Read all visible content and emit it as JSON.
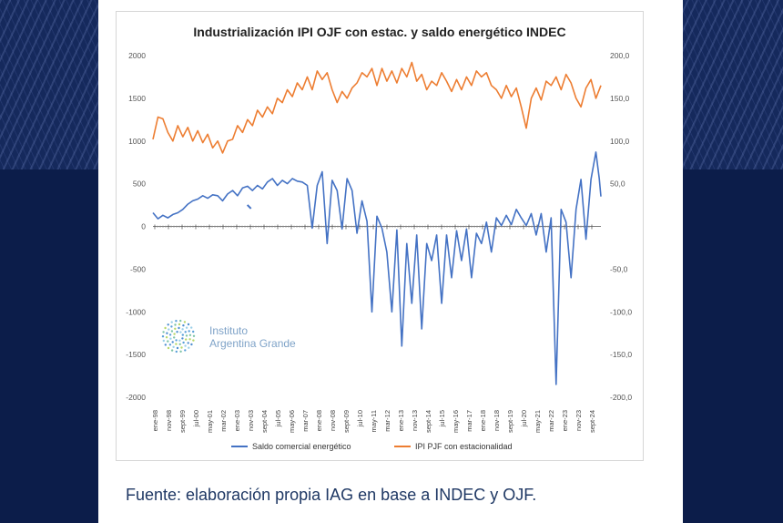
{
  "caption": "Fuente: elaboración propia IAG en base a INDEC y OJF.",
  "logo": {
    "line1": "Instituto",
    "line2": "Argentina Grande"
  },
  "chart_data": {
    "type": "line",
    "title": "Industrialización IPI OJF con estac. y saldo energético INDEC",
    "left_axis": {
      "ylim": [
        -2000,
        2000
      ],
      "ticks": [
        "2000",
        "1500",
        "1000",
        "500",
        "0",
        "-500",
        "-1000",
        "-1500",
        "-2000"
      ]
    },
    "right_axis": {
      "ylim": [
        -200,
        200
      ],
      "ticks": [
        "200,0",
        "150,0",
        "100,0",
        "50,0",
        "",
        "-50,0",
        "-100,0",
        "-150,0",
        "-200,0"
      ]
    },
    "x_range": [
      1998.0,
      2025.0
    ],
    "x_tick_labels": [
      "ene-98",
      "nov-98",
      "sept-99",
      "jul-00",
      "may-01",
      "mar-02",
      "ene-03",
      "nov-03",
      "sept-04",
      "jul-05",
      "may-06",
      "mar-07",
      "ene-08",
      "nov-08",
      "sept-09",
      "jul-10",
      "may-11",
      "mar-12",
      "ene-13",
      "nov-13",
      "sept-14",
      "jul-15",
      "may-16",
      "mar-17",
      "ene-18",
      "nov-18",
      "sept-19",
      "jul-20",
      "may-21",
      "mar-22",
      "ene-23",
      "nov-23",
      "sept-24"
    ],
    "series": [
      {
        "name": "Saldo comercial energético",
        "axis": "left",
        "color": "#4472c4",
        "points": [
          [
            1998.0,
            160
          ],
          [
            1998.3,
            90
          ],
          [
            1998.6,
            130
          ],
          [
            1998.9,
            100
          ],
          [
            1999.2,
            140
          ],
          [
            1999.5,
            160
          ],
          [
            1999.8,
            200
          ],
          [
            2000.1,
            260
          ],
          [
            2000.4,
            300
          ],
          [
            2000.7,
            320
          ],
          [
            2001.0,
            360
          ],
          [
            2001.3,
            330
          ],
          [
            2001.6,
            370
          ],
          [
            2001.9,
            360
          ],
          [
            2002.2,
            300
          ],
          [
            2002.5,
            380
          ],
          [
            2002.8,
            420
          ],
          [
            2003.1,
            360
          ],
          [
            2003.4,
            450
          ],
          [
            2003.7,
            470
          ],
          [
            2004.0,
            420
          ],
          [
            2004.3,
            480
          ],
          [
            2004.6,
            440
          ],
          [
            2004.9,
            520
          ],
          [
            2005.2,
            560
          ],
          [
            2005.5,
            480
          ],
          [
            2005.8,
            540
          ],
          [
            2006.1,
            500
          ],
          [
            2006.4,
            560
          ],
          [
            2006.7,
            530
          ],
          [
            2007.0,
            520
          ],
          [
            2007.3,
            480
          ],
          [
            2007.6,
            -20
          ],
          [
            2007.9,
            480
          ],
          [
            2008.2,
            640
          ],
          [
            2008.5,
            -200
          ],
          [
            2008.8,
            540
          ],
          [
            2009.1,
            420
          ],
          [
            2009.4,
            -30
          ],
          [
            2009.7,
            560
          ],
          [
            2010.0,
            420
          ],
          [
            2010.3,
            -80
          ],
          [
            2010.6,
            300
          ],
          [
            2010.9,
            60
          ],
          [
            2011.2,
            -1000
          ],
          [
            2011.5,
            120
          ],
          [
            2011.8,
            -20
          ],
          [
            2012.1,
            -300
          ],
          [
            2012.4,
            -1000
          ],
          [
            2012.7,
            -40
          ],
          [
            2013.0,
            -1400
          ],
          [
            2013.3,
            -200
          ],
          [
            2013.6,
            -900
          ],
          [
            2013.9,
            -100
          ],
          [
            2014.2,
            -1200
          ],
          [
            2014.5,
            -200
          ],
          [
            2014.8,
            -400
          ],
          [
            2015.1,
            -100
          ],
          [
            2015.4,
            -900
          ],
          [
            2015.7,
            -100
          ],
          [
            2016.0,
            -600
          ],
          [
            2016.3,
            -50
          ],
          [
            2016.6,
            -400
          ],
          [
            2016.9,
            -30
          ],
          [
            2017.2,
            -600
          ],
          [
            2017.5,
            -80
          ],
          [
            2017.8,
            -200
          ],
          [
            2018.1,
            50
          ],
          [
            2018.4,
            -300
          ],
          [
            2018.7,
            100
          ],
          [
            2019.0,
            10
          ],
          [
            2019.3,
            130
          ],
          [
            2019.6,
            20
          ],
          [
            2019.9,
            200
          ],
          [
            2020.2,
            100
          ],
          [
            2020.5,
            10
          ],
          [
            2020.8,
            150
          ],
          [
            2021.1,
            -100
          ],
          [
            2021.4,
            150
          ],
          [
            2021.7,
            -300
          ],
          [
            2022.0,
            100
          ],
          [
            2022.3,
            -1850
          ],
          [
            2022.6,
            200
          ],
          [
            2022.9,
            50
          ],
          [
            2023.2,
            -600
          ],
          [
            2023.5,
            200
          ],
          [
            2023.8,
            550
          ],
          [
            2024.1,
            -150
          ],
          [
            2024.4,
            550
          ],
          [
            2024.7,
            870
          ],
          [
            2024.9,
            560
          ],
          [
            2025.0,
            350
          ]
        ]
      },
      {
        "name": "IPI PJF con estacionalidad",
        "axis": "right",
        "color": "#ed7d31",
        "points": [
          [
            1998.0,
            102
          ],
          [
            1998.3,
            128
          ],
          [
            1998.6,
            126
          ],
          [
            1998.9,
            110
          ],
          [
            1999.2,
            100
          ],
          [
            1999.5,
            118
          ],
          [
            1999.8,
            105
          ],
          [
            2000.1,
            116
          ],
          [
            2000.4,
            100
          ],
          [
            2000.7,
            112
          ],
          [
            2001.0,
            98
          ],
          [
            2001.3,
            108
          ],
          [
            2001.6,
            92
          ],
          [
            2001.9,
            100
          ],
          [
            2002.2,
            86
          ],
          [
            2002.5,
            100
          ],
          [
            2002.8,
            102
          ],
          [
            2003.1,
            118
          ],
          [
            2003.4,
            110
          ],
          [
            2003.7,
            125
          ],
          [
            2004.0,
            118
          ],
          [
            2004.3,
            136
          ],
          [
            2004.6,
            128
          ],
          [
            2004.9,
            140
          ],
          [
            2005.2,
            132
          ],
          [
            2005.5,
            150
          ],
          [
            2005.8,
            145
          ],
          [
            2006.1,
            160
          ],
          [
            2006.4,
            152
          ],
          [
            2006.7,
            168
          ],
          [
            2007.0,
            160
          ],
          [
            2007.3,
            175
          ],
          [
            2007.6,
            160
          ],
          [
            2007.9,
            182
          ],
          [
            2008.2,
            172
          ],
          [
            2008.5,
            180
          ],
          [
            2008.8,
            160
          ],
          [
            2009.1,
            145
          ],
          [
            2009.4,
            158
          ],
          [
            2009.7,
            150
          ],
          [
            2010.0,
            162
          ],
          [
            2010.3,
            168
          ],
          [
            2010.6,
            180
          ],
          [
            2010.9,
            175
          ],
          [
            2011.2,
            185
          ],
          [
            2011.5,
            165
          ],
          [
            2011.8,
            185
          ],
          [
            2012.1,
            170
          ],
          [
            2012.4,
            182
          ],
          [
            2012.7,
            168
          ],
          [
            2013.0,
            185
          ],
          [
            2013.3,
            175
          ],
          [
            2013.6,
            192
          ],
          [
            2013.9,
            170
          ],
          [
            2014.2,
            178
          ],
          [
            2014.5,
            160
          ],
          [
            2014.8,
            170
          ],
          [
            2015.1,
            165
          ],
          [
            2015.4,
            180
          ],
          [
            2015.7,
            170
          ],
          [
            2016.0,
            158
          ],
          [
            2016.3,
            172
          ],
          [
            2016.6,
            160
          ],
          [
            2016.9,
            175
          ],
          [
            2017.2,
            165
          ],
          [
            2017.5,
            182
          ],
          [
            2017.8,
            175
          ],
          [
            2018.1,
            180
          ],
          [
            2018.4,
            165
          ],
          [
            2018.7,
            160
          ],
          [
            2019.0,
            150
          ],
          [
            2019.3,
            165
          ],
          [
            2019.6,
            152
          ],
          [
            2019.9,
            162
          ],
          [
            2020.2,
            140
          ],
          [
            2020.5,
            115
          ],
          [
            2020.8,
            150
          ],
          [
            2021.1,
            162
          ],
          [
            2021.4,
            148
          ],
          [
            2021.7,
            170
          ],
          [
            2022.0,
            165
          ],
          [
            2022.3,
            175
          ],
          [
            2022.6,
            160
          ],
          [
            2022.9,
            178
          ],
          [
            2023.2,
            168
          ],
          [
            2023.5,
            150
          ],
          [
            2023.8,
            140
          ],
          [
            2024.1,
            162
          ],
          [
            2024.4,
            172
          ],
          [
            2024.7,
            150
          ],
          [
            2025.0,
            165
          ]
        ]
      }
    ],
    "extra_marks": [
      {
        "series": "Saldo comercial energético",
        "x": 2003.8,
        "y": 230
      }
    ],
    "legend": [
      "Saldo comercial energético",
      "IPI PJF con estacionalidad"
    ],
    "legend_position": "bottom"
  }
}
